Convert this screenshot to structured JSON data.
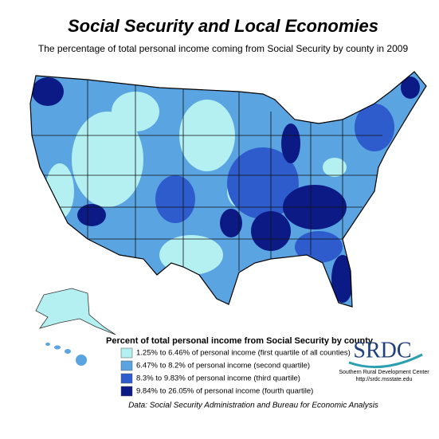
{
  "title": "Social Security and Local Economies",
  "subtitle": "The percentage of total personal income coming from Social Security by county in 2009",
  "legend": {
    "title": "Percent of total personal income from Social Security by county",
    "items": [
      {
        "label": "1.25% to 6.46% of personal income (first quartile of all counties)",
        "color": "#b4f0f2"
      },
      {
        "label": "6.47% to 8.2% of personal income (second quartile)",
        "color": "#5aa4e2"
      },
      {
        "label": "8.3% to 9.83% of personal income (third quartile)",
        "color": "#2e5ccc"
      },
      {
        "label": "9.84% to 26.05% of personal income (fourth quartile)",
        "color": "#0c1a86"
      }
    ]
  },
  "logo": {
    "mark": "SRDC",
    "org": "Southern Rural Development Center",
    "url": "http://srdc.msstate.edu"
  },
  "source": "Data: Social Security Administration and Bureau for Economic Analysis"
}
